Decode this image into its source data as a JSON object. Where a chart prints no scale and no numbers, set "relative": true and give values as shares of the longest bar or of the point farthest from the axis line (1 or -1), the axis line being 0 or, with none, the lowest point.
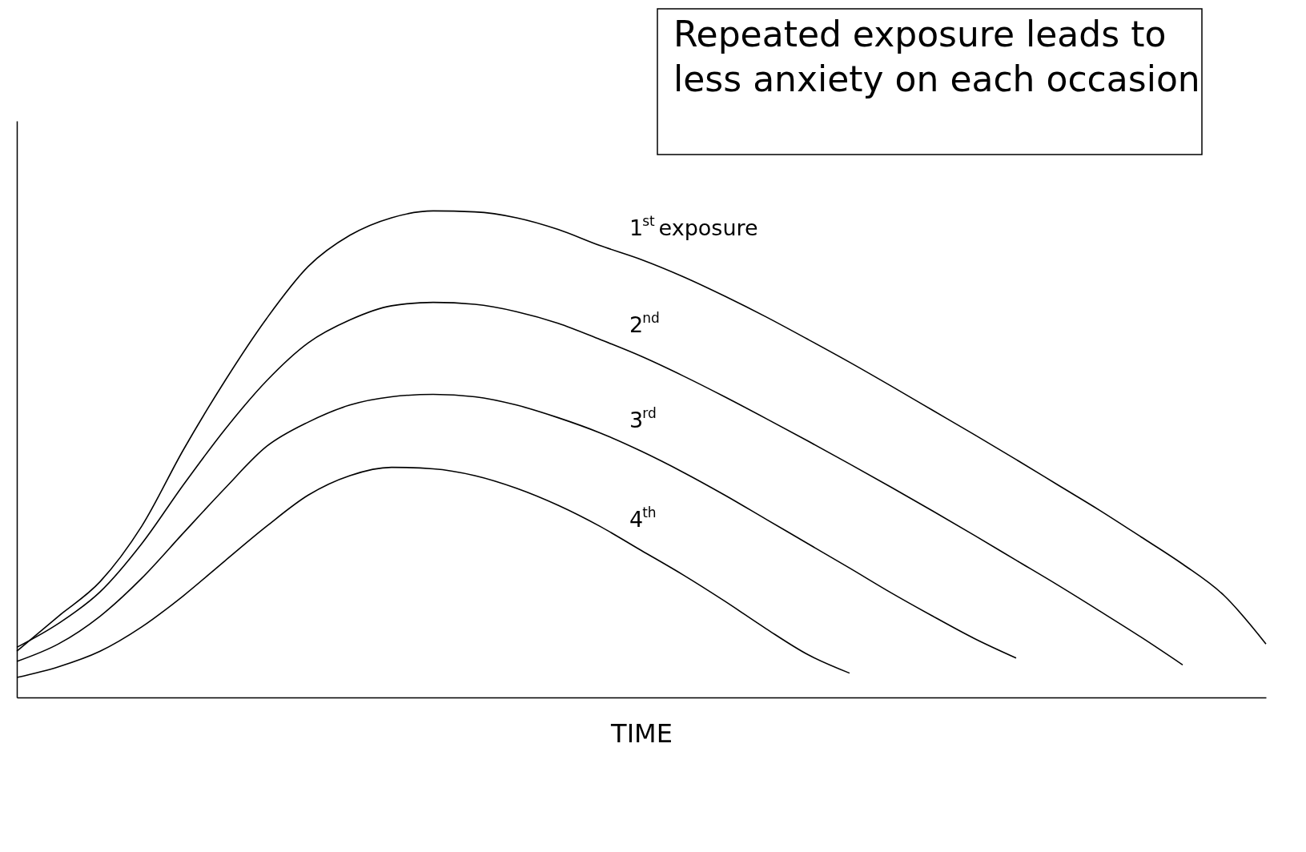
{
  "chart_data": {
    "type": "line",
    "relative": true,
    "xlabel": "TIME",
    "legend": false,
    "grid": false,
    "marker": "none",
    "line_style": "solid",
    "categories": [
      null,
      null,
      null,
      null,
      null,
      null,
      null,
      null,
      null,
      null,
      null,
      null,
      null,
      null,
      null,
      null,
      null,
      null,
      null,
      null,
      null,
      null,
      null,
      null,
      null,
      null,
      null,
      null,
      null,
      null,
      null
    ],
    "series": [
      {
        "name": "1$^{st}$ exposure",
        "color": "#000000",
        "values": [
          0.095,
          0.167,
          0.238,
          0.352,
          0.509,
          0.651,
          0.779,
          0.886,
          0.95,
          0.986,
          1.0,
          0.998,
          0.986,
          0.962,
          0.929,
          0.9,
          0.865,
          0.825,
          0.782,
          0.736,
          0.689,
          0.64,
          0.59,
          0.54,
          0.489,
          0.437,
          0.385,
          0.33,
          0.274,
          0.209,
          0.11
        ]
      },
      {
        "name": "2$^{nd}$",
        "color": "#000000",
        "values": [
          0.103,
          0.152,
          0.217,
          0.316,
          0.437,
          0.551,
          0.651,
          0.729,
          0.776,
          0.805,
          0.812,
          0.808,
          0.793,
          0.769,
          0.736,
          0.701,
          0.661,
          0.618,
          0.573,
          0.527,
          0.48,
          0.432,
          0.383,
          0.333,
          0.282,
          0.231,
          0.178,
          0.124,
          0.067,
          null,
          null
        ]
      },
      {
        "name": "3$^{rd}$",
        "color": "#000000",
        "values": [
          0.074,
          0.11,
          0.167,
          0.245,
          0.338,
          0.43,
          0.516,
          0.566,
          0.601,
          0.618,
          0.623,
          0.618,
          0.601,
          0.575,
          0.544,
          0.506,
          0.463,
          0.416,
          0.366,
          0.316,
          0.266,
          0.215,
          0.167,
          0.121,
          0.081,
          null,
          null,
          null,
          null,
          null,
          null
        ]
      },
      {
        "name": "4$^{th}$",
        "color": "#000000",
        "values": [
          0.041,
          0.063,
          0.095,
          0.145,
          0.209,
          0.281,
          0.352,
          0.416,
          0.456,
          0.473,
          0.47,
          0.456,
          0.43,
          0.395,
          0.352,
          0.302,
          0.252,
          0.198,
          0.141,
          0.088,
          0.05,
          null,
          null,
          null,
          null,
          null,
          null,
          null,
          null,
          null,
          null
        ]
      }
    ],
    "annotations": [
      "Repeated exposure leads to\nless anxiety on each occasion"
    ]
  }
}
